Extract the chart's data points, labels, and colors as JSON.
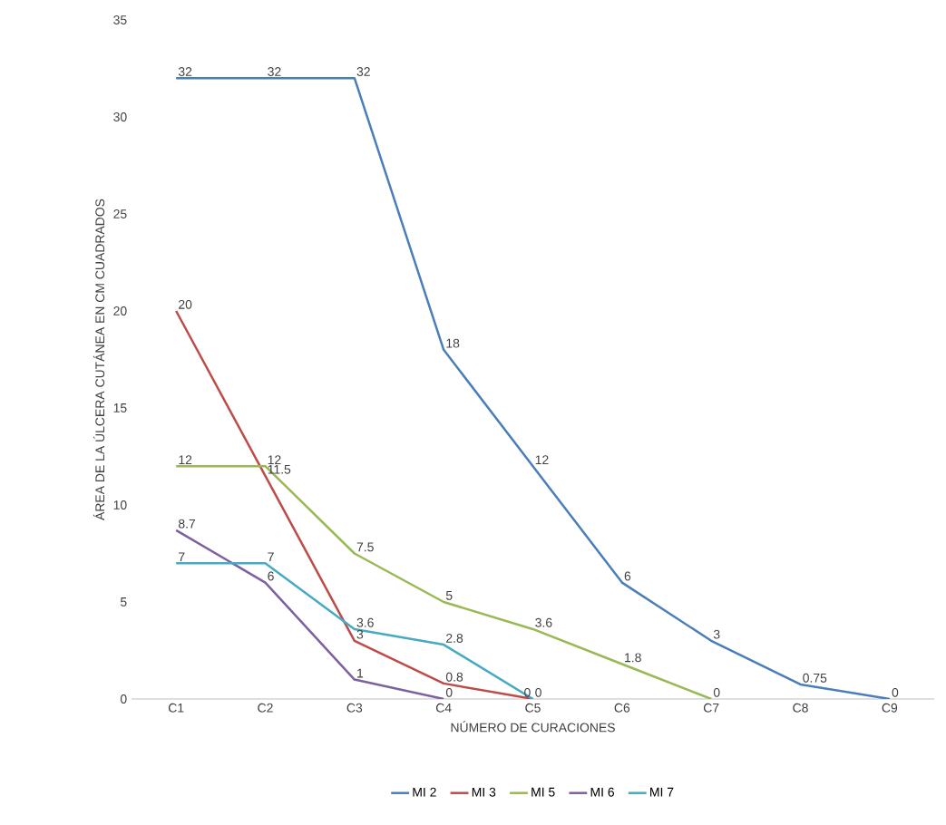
{
  "chart_data": {
    "type": "line",
    "xlabel": "NÚMERO DE CURACIONES",
    "ylabel": "ÁREA DE LA ÚLCERA CUTÁNEA EN CM CUADRADOS",
    "categories": [
      "C1",
      "C2",
      "C3",
      "C4",
      "C5",
      "C6",
      "C7",
      "C8",
      "C9"
    ],
    "series": [
      {
        "name": "MI 2",
        "color": "#4a7ebb",
        "values": [
          32,
          32,
          32,
          18,
          12,
          6,
          3,
          0.75,
          0
        ]
      },
      {
        "name": "MI 3",
        "color": "#be4b48",
        "values": [
          20,
          11.5,
          3,
          0.8,
          0,
          null,
          null,
          null,
          null
        ]
      },
      {
        "name": "MI 5",
        "color": "#98b954",
        "values": [
          12,
          12,
          7.5,
          5,
          3.6,
          1.8,
          0,
          null,
          null
        ]
      },
      {
        "name": "MI 6",
        "color": "#7d60a0",
        "values": [
          8.7,
          6,
          1,
          0,
          null,
          null,
          null,
          null,
          null
        ]
      },
      {
        "name": "MI 7",
        "color": "#46aac5",
        "values": [
          7,
          7,
          3.6,
          2.8,
          0,
          null,
          null,
          null,
          null
        ]
      }
    ],
    "ylim": [
      0,
      35
    ],
    "yticks": [
      0,
      5,
      10,
      15,
      20,
      25,
      30,
      35
    ],
    "data_labels": true,
    "legend": "bottom",
    "marker": "none",
    "line_style": "solid",
    "grid": false
  }
}
